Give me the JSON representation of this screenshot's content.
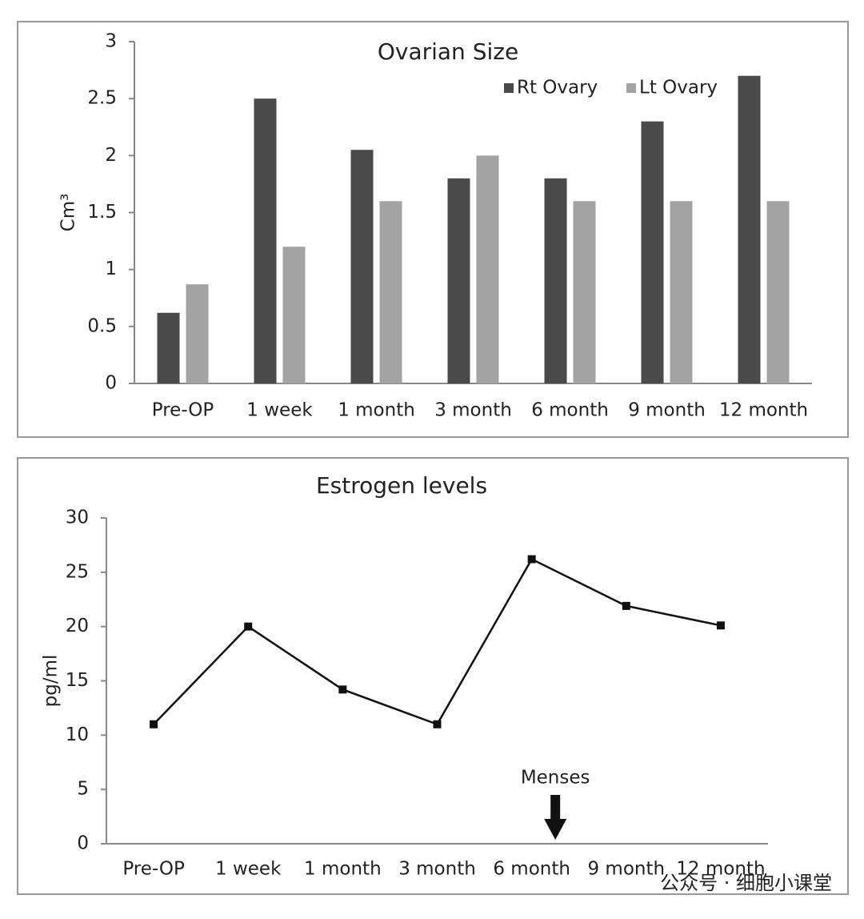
{
  "chart_data": [
    {
      "type": "bar",
      "title": "Ovarian Size",
      "y_label": "Cm³",
      "categories": [
        "Pre-OP",
        "1 week",
        "1 month",
        "3 month",
        "6 month",
        "9 month",
        "12 month"
      ],
      "series": [
        {
          "name": "Rt Ovary",
          "color": "#4a4a4a",
          "values": [
            0.62,
            2.5,
            2.05,
            1.8,
            1.8,
            2.3,
            2.7
          ]
        },
        {
          "name": "Lt Ovary",
          "color": "#a3a3a3",
          "values": [
            0.87,
            1.2,
            1.6,
            2.0,
            1.6,
            1.6,
            1.6
          ]
        }
      ],
      "ylim": [
        0,
        3
      ],
      "yticks": [
        0,
        0.5,
        1,
        1.5,
        2,
        2.5,
        3
      ],
      "grid": false,
      "legend": "top-right"
    },
    {
      "type": "line",
      "title": "Estrogen levels",
      "y_label": "pg/ml",
      "categories": [
        "Pre-OP",
        "1 week",
        "1 month",
        "3 month",
        "6 month",
        "9 month",
        "12 month"
      ],
      "series": [
        {
          "name": "Estrogen",
          "color": "#111111",
          "values": [
            11,
            20,
            14.2,
            11,
            26.2,
            21.9,
            20.1
          ]
        }
      ],
      "ylim": [
        0,
        30
      ],
      "yticks": [
        0,
        5,
        10,
        15,
        20,
        25,
        30
      ],
      "grid": false,
      "annotation": "Menses"
    }
  ],
  "watermark": "公众号 · 细胞小课堂"
}
